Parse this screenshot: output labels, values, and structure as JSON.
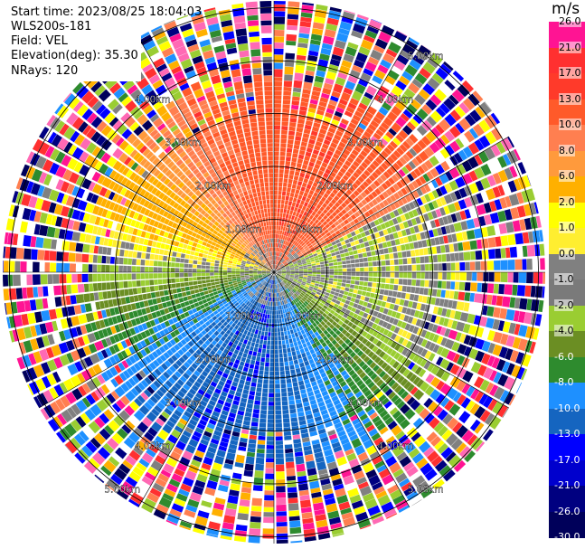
{
  "header": {
    "start_time": "Start time: 2023/08/25 18:04:03",
    "instrument": "WLS200s-181",
    "field": "Field: VEL",
    "elevation": "Elevation(deg): 35.30",
    "nrays": "NRays: 120"
  },
  "colorbar": {
    "unit": "m/s",
    "labels": [
      "26.0",
      "21.0",
      "17.0",
      "13.0",
      "10.0",
      "8.0",
      "6.0",
      "2.0",
      "1.0",
      "0.0",
      "-1.0",
      "-2.0",
      "-4.0",
      "-6.0",
      "-8.0",
      "-10.0",
      "-13.0",
      "-17.0",
      "-21.0",
      "-26.0",
      "-30.0"
    ],
    "colors": [
      "#ff1493",
      "#ff3030",
      "#ff3a2a",
      "#ff5a2a",
      "#ff7f50",
      "#ff9a3c",
      "#ffb000",
      "#ffff00",
      "#ffee30",
      "#808080",
      "#7a7a7a",
      "#9acd32",
      "#6b8e23",
      "#2e8b2e",
      "#1e90ff",
      "#1565c0",
      "#0000ff",
      "#0000cd",
      "#000080",
      "#00005a"
    ]
  },
  "chart_data": {
    "type": "ppi_polar",
    "field": "VEL",
    "units": "m/s",
    "n_rays": 120,
    "elevation_deg": 35.3,
    "range_rings_km": [
      1.0,
      2.0,
      3.0,
      4.0,
      5.0
    ],
    "ring_labels": [
      "1.00km",
      "2.00km",
      "3.00km",
      "4.00km",
      "5.00km"
    ],
    "azimuth_lines_deg": [
      0,
      30,
      60,
      90,
      120,
      150,
      180,
      210,
      240,
      270,
      300,
      330
    ],
    "velocity_pattern": {
      "north_sector": "positive (10 to 13 m/s)",
      "east_sector": "0 to -2 m/s",
      "south_sector": "negative (-6 to -10 m/s)",
      "west_sector": "2 to 6 m/s",
      "outer_ranges": "noise"
    }
  }
}
